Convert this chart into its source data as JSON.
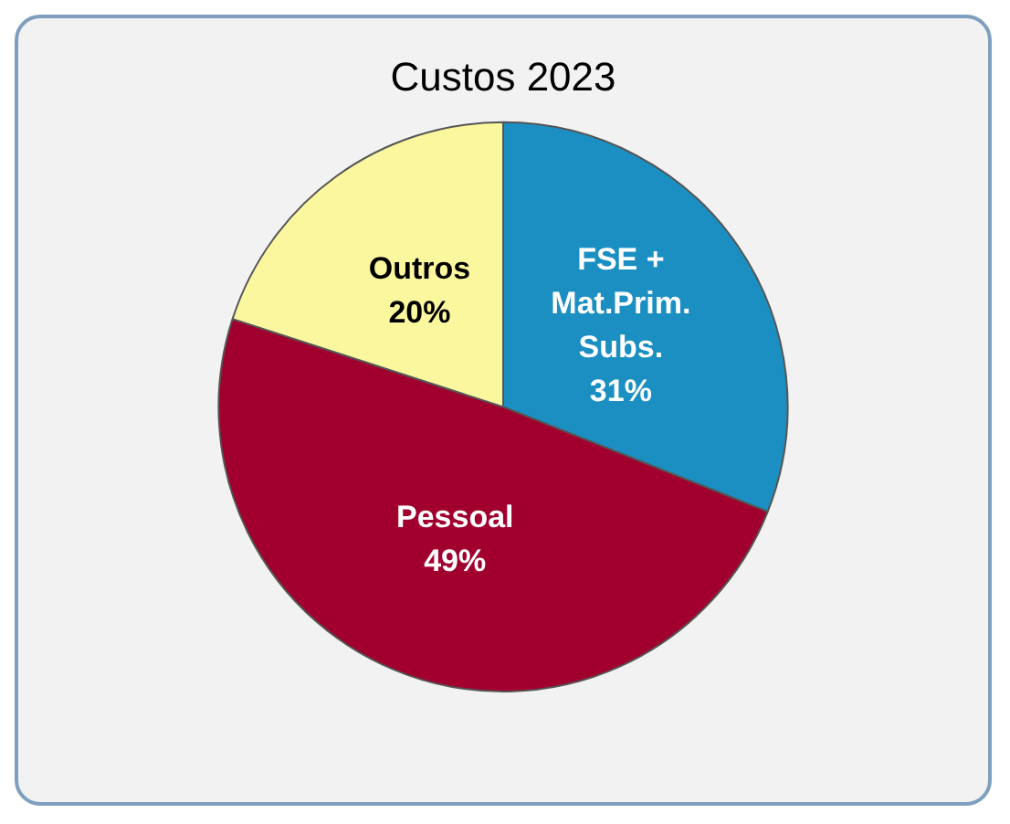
{
  "chart_data": {
    "type": "pie",
    "title": "Custos 2023",
    "categories": [
      "FSE + Mat.Prim. Subs.",
      "Pessoal",
      "Outros"
    ],
    "values": [
      31,
      49,
      20
    ],
    "colors": [
      "#1b8fc2",
      "#a1002f",
      "#fbf79e"
    ],
    "value_labels": [
      "31%",
      "49%",
      "20%"
    ],
    "legend": false
  }
}
